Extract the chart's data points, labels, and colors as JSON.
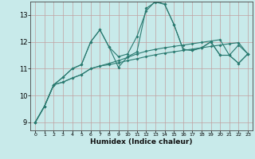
{
  "xlabel": "Humidex (Indice chaleur)",
  "xlim": [
    -0.5,
    23.5
  ],
  "ylim": [
    8.7,
    13.5
  ],
  "yticks": [
    9,
    10,
    11,
    12,
    13
  ],
  "xticks": [
    0,
    1,
    2,
    3,
    4,
    5,
    6,
    7,
    8,
    9,
    10,
    11,
    12,
    13,
    14,
    15,
    16,
    17,
    18,
    19,
    20,
    21,
    22,
    23
  ],
  "bg_color": "#c8eaea",
  "line_color": "#2a7a70",
  "grid_color": "#c0a0a0",
  "series1": {
    "x": [
      0,
      1,
      2,
      3,
      4,
      5,
      6,
      7,
      8,
      9,
      10,
      11,
      12,
      13,
      14,
      15,
      16,
      17,
      18,
      19,
      20,
      21,
      22,
      23
    ],
    "y": [
      9.0,
      9.6,
      10.4,
      10.5,
      10.65,
      10.78,
      11.0,
      11.1,
      11.15,
      11.22,
      11.3,
      11.37,
      11.45,
      11.52,
      11.58,
      11.63,
      11.68,
      11.73,
      11.78,
      11.83,
      11.88,
      11.93,
      11.97,
      11.55
    ]
  },
  "series2": {
    "x": [
      0,
      1,
      2,
      3,
      4,
      5,
      6,
      7,
      8,
      9,
      10,
      11,
      12,
      13,
      14,
      15,
      16,
      17,
      18,
      19,
      20,
      21,
      22,
      23
    ],
    "y": [
      9.0,
      9.6,
      10.4,
      10.5,
      10.65,
      10.78,
      11.0,
      11.1,
      11.2,
      11.3,
      11.42,
      11.55,
      11.65,
      11.72,
      11.78,
      11.83,
      11.88,
      11.93,
      11.98,
      12.03,
      12.08,
      11.5,
      11.88,
      11.55
    ]
  },
  "series3": {
    "x": [
      0,
      1,
      2,
      3,
      4,
      5,
      6,
      7,
      8,
      9,
      10,
      11,
      12,
      13,
      14,
      15,
      16,
      17,
      18,
      19,
      20,
      21,
      22,
      23
    ],
    "y": [
      9.0,
      9.6,
      10.4,
      10.68,
      11.0,
      11.15,
      12.0,
      12.45,
      11.8,
      11.05,
      11.45,
      11.62,
      13.25,
      13.48,
      13.4,
      12.65,
      11.72,
      11.68,
      11.78,
      12.0,
      11.5,
      11.5,
      11.2,
      11.55
    ]
  },
  "series4": {
    "x": [
      0,
      1,
      2,
      3,
      4,
      5,
      6,
      7,
      8,
      9,
      10,
      11,
      12,
      13,
      14,
      15,
      16,
      17,
      18,
      19,
      20,
      21,
      22,
      23
    ],
    "y": [
      9.0,
      9.6,
      10.4,
      10.68,
      11.0,
      11.15,
      12.0,
      12.45,
      11.8,
      11.45,
      11.55,
      12.2,
      13.15,
      13.52,
      13.4,
      12.65,
      11.72,
      11.68,
      11.78,
      12.0,
      11.5,
      11.5,
      11.2,
      11.55
    ]
  }
}
